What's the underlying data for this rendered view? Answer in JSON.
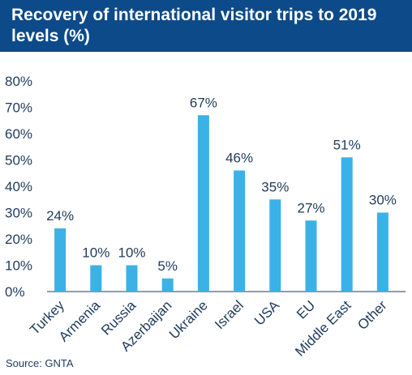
{
  "header": {
    "title": "Recovery of international visitor trips to 2019 levels (%)"
  },
  "source": "Source: GNTA",
  "colors": {
    "title_background": "#0d4a8a",
    "bar": "#3bb2e6",
    "text": "#1f3b5c",
    "axis": "#1f3b5c"
  },
  "chart_data": {
    "type": "bar",
    "title": "Recovery of international visitor trips to 2019 levels (%)",
    "xlabel": "",
    "ylabel": "",
    "categories": [
      "Turkey",
      "Armenia",
      "Russia",
      "Azerbaijan",
      "Ukraine",
      "Israel",
      "USA",
      "EU",
      "Middle East",
      "Other"
    ],
    "values": [
      24,
      10,
      10,
      5,
      67,
      46,
      35,
      27,
      51,
      30
    ],
    "value_labels": [
      "24%",
      "10%",
      "10%",
      "5%",
      "67%",
      "46%",
      "35%",
      "27%",
      "51%",
      "30%"
    ],
    "ylim": [
      0,
      80
    ],
    "yticks": [
      "0%",
      "10%",
      "20%",
      "30%",
      "40%",
      "50%",
      "60%",
      "70%",
      "80%"
    ],
    "grid": false,
    "legend": "none"
  }
}
